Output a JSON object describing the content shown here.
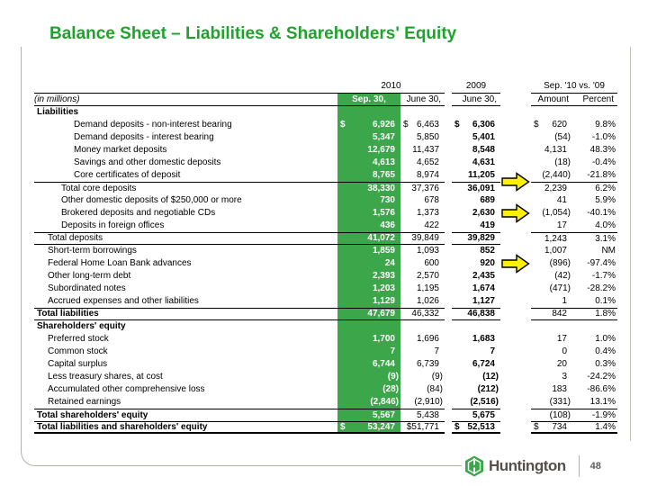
{
  "slide": {
    "title": "Balance Sheet – Liabilities & Shareholders' Equity"
  },
  "colors": {
    "title_green": "#1FA32E",
    "column_green": "#3CA64A",
    "arrow_yellow": "#FFF100",
    "frame_gray": "#b3afa7",
    "brand_text": "#55504a",
    "page_text": "#5d5d5d"
  },
  "footer": {
    "brand": "Huntington",
    "page": "48"
  },
  "table": {
    "col_groups": [
      "2010",
      "2009",
      "Sep. '10 vs. '09"
    ],
    "columns": [
      "(in millions)",
      "Sep. 30,",
      "June 30,",
      "June 30,",
      "Amount",
      "Percent"
    ],
    "rows": [
      {
        "label": "Liabilities",
        "section": true
      },
      {
        "label": "Demand deposits - non-interest bearing",
        "indent": 3,
        "v": [
          "$ 6,926",
          "$ 6,463",
          "$ 6,306",
          "$ 620",
          "9.8%"
        ]
      },
      {
        "label": "Demand deposits - interest bearing",
        "indent": 3,
        "v": [
          "5,347",
          "5,850",
          "5,401",
          "(54)",
          "-1.0%"
        ]
      },
      {
        "label": "Money market deposits",
        "indent": 3,
        "v": [
          "12,679",
          "11,437",
          "8,548",
          "4,131",
          "48.3%"
        ]
      },
      {
        "label": "Savings and other domestic deposits",
        "indent": 3,
        "v": [
          "4,613",
          "4,652",
          "4,631",
          "(18)",
          "-0.4%"
        ]
      },
      {
        "label": "Core certificates of deposit",
        "indent": 3,
        "v": [
          "8,765",
          "8,974",
          "11,205",
          "(2,440)",
          "-21.8%"
        ],
        "arrow": true,
        "arrow_dy": 7
      },
      {
        "label": "Total core deposits",
        "indent": 2,
        "rt": true,
        "v": [
          "38,330",
          "37,376",
          "36,091",
          "2,239",
          "6.2%"
        ]
      },
      {
        "label": "Other domestic deposits of $250,000 or more",
        "indent": 2,
        "v": [
          "730",
          "678",
          "689",
          "41",
          "5.9%"
        ]
      },
      {
        "label": "Brokered deposits and negotiable CDs",
        "indent": 2,
        "v": [
          "1,576",
          "1,373",
          "2,630",
          "(1,054)",
          "-40.1%"
        ],
        "arrow": true,
        "arrow_dy": 0
      },
      {
        "label": "Deposits in foreign offices",
        "indent": 2,
        "v": [
          "436",
          "422",
          "419",
          "17",
          "4.0%"
        ]
      },
      {
        "label": "Total deposits",
        "indent": 1,
        "rt": true,
        "rb": "left",
        "v": [
          "41,072",
          "39,849",
          "39,829",
          "1,243",
          "3.1%"
        ]
      },
      {
        "label": "Short-term borrowings",
        "indent": 1,
        "v": [
          "1,859",
          "1,093",
          "852",
          "1,007",
          "NM"
        ]
      },
      {
        "label": "Federal Home Loan Bank advances",
        "indent": 1,
        "v": [
          "24",
          "600",
          "920",
          "(896)",
          "-97.4%"
        ],
        "arrow": true,
        "arrow_dy": 0
      },
      {
        "label": "Other long-term debt",
        "indent": 1,
        "v": [
          "2,393",
          "2,570",
          "2,435",
          "(42)",
          "-1.7%"
        ]
      },
      {
        "label": "Subordinated notes",
        "indent": 1,
        "v": [
          "1,203",
          "1,195",
          "1,674",
          "(471)",
          "-28.2%"
        ]
      },
      {
        "label": "Accrued expenses and other liabilities",
        "indent": 1,
        "v": [
          "1,129",
          "1,026",
          "1,127",
          "1",
          "0.1%"
        ]
      },
      {
        "label": "Total liabilities",
        "bold": true,
        "rt": true,
        "rb": "all",
        "v": [
          "47,679",
          "46,332",
          "46,838",
          "842",
          "1.8%"
        ]
      },
      {
        "label": "Shareholders' equity",
        "section": true
      },
      {
        "label": "Preferred stock",
        "indent": 1,
        "v": [
          "1,700",
          "1,696",
          "1,683",
          "17",
          "1.0%"
        ]
      },
      {
        "label": "Common stock",
        "indent": 1,
        "v": [
          "7",
          "7",
          "7",
          "0",
          "0.4%"
        ]
      },
      {
        "label": "Capital surplus",
        "indent": 1,
        "v": [
          "6,744",
          "6,739",
          "6,724",
          "20",
          "0.3%"
        ]
      },
      {
        "label": "Less treasury shares, at cost",
        "indent": 1,
        "v": [
          "(9)",
          "(9)",
          "(12)",
          "3",
          "-24.2%"
        ]
      },
      {
        "label": "Accumulated other comprehensive loss",
        "indent": 1,
        "v": [
          "(28)",
          "(84)",
          "(212)",
          "183",
          "-86.6%"
        ]
      },
      {
        "label": "Retained earnings",
        "indent": 1,
        "v": [
          "(2,846)",
          "(2,910)",
          "(2,516)",
          "(331)",
          "13.1%"
        ]
      },
      {
        "label": "Total shareholders' equity",
        "bold": true,
        "rt": true,
        "v": [
          "5,567",
          "5,438",
          "5,675",
          "(108)",
          "-1.9%"
        ]
      },
      {
        "label": "Total liabilities and shareholders' equity",
        "bold": true,
        "rt": true,
        "rb": "all",
        "thick": true,
        "v": [
          "$ 53,247",
          "$51,771",
          "$ 52,513",
          "$ 734",
          "1.4%"
        ]
      }
    ]
  }
}
